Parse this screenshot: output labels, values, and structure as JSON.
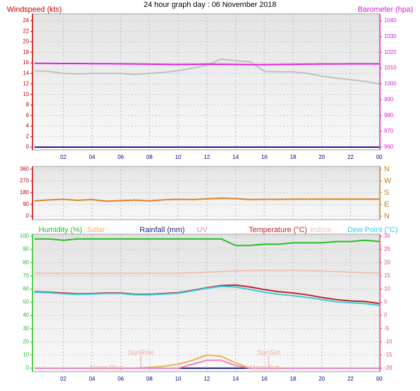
{
  "title": "24 hour graph day : 06 November 2018",
  "chart_data": [
    {
      "type": "line",
      "ylabel": "Windspeed (kts)",
      "y2label": "Barometer (hpa)",
      "ycolor": "#c00000",
      "y2color": "#d020d0",
      "x": [
        0,
        1,
        2,
        3,
        4,
        5,
        6,
        7,
        8,
        9,
        10,
        11,
        12,
        13,
        14,
        15,
        16,
        17,
        18,
        19,
        20,
        21,
        22,
        23,
        24
      ],
      "xlim": [
        0,
        24
      ],
      "xticks": [
        {
          "value": 2,
          "label": "02"
        },
        {
          "value": 4,
          "label": "04"
        },
        {
          "value": 6,
          "label": "06"
        },
        {
          "value": 8,
          "label": "08"
        },
        10,
        12,
        14,
        16,
        18,
        20,
        22,
        {
          "value": 24,
          "label": "00"
        }
      ],
      "ylim": [
        0,
        24
      ],
      "yticks": [
        0,
        2,
        4,
        6,
        8,
        10,
        12,
        14,
        16,
        18,
        20,
        22,
        24
      ],
      "y2lim": [
        960,
        1040
      ],
      "y2ticks": [
        960,
        970,
        980,
        990,
        1000,
        1010,
        1020,
        1030,
        1040
      ],
      "grid": true,
      "series": [
        {
          "color": "#c0c0c0",
          "values": [
            14.5,
            14.4,
            14.0,
            13.9,
            14.0,
            14.0,
            14.0,
            13.8,
            14.0,
            14.2,
            14.5,
            15.0,
            15.6,
            16.7,
            16.4,
            16.2,
            14.4,
            14.3,
            14.3,
            14.0,
            13.5,
            13.1,
            12.8,
            12.5,
            12.0
          ]
        },
        {
          "color": "#e020e0",
          "axis": "y2",
          "values": [
            1013.0,
            1013.0,
            1012.9,
            1012.9,
            1012.8,
            1012.8,
            1012.7,
            1012.6,
            1012.5,
            1012.4,
            1012.3,
            1012.4,
            1012.5,
            1012.4,
            1012.3,
            1012.2,
            1012.2,
            1012.3,
            1012.4,
            1012.5,
            1012.6,
            1012.6,
            1012.7,
            1012.7,
            1012.7
          ]
        },
        {
          "color": "#3010a0",
          "values": [
            0,
            0,
            0,
            0,
            0,
            0,
            0,
            0,
            0,
            0,
            0,
            0,
            0,
            0,
            0,
            0,
            0,
            0,
            0,
            0,
            0,
            0,
            0,
            0,
            0
          ]
        }
      ]
    },
    {
      "type": "line",
      "ycolor": "#c00000",
      "y2color": "#c08020",
      "x": [
        0,
        1,
        2,
        3,
        4,
        5,
        6,
        7,
        8,
        9,
        10,
        11,
        12,
        13,
        14,
        15,
        16,
        17,
        18,
        19,
        20,
        21,
        22,
        23,
        24
      ],
      "xlim": [
        0,
        24
      ],
      "xticks": [
        {
          "value": 2,
          "label": "02"
        },
        {
          "value": 4,
          "label": "04"
        },
        {
          "value": 6,
          "label": "06"
        },
        {
          "value": 8,
          "label": "08"
        },
        10,
        12,
        14,
        16,
        18,
        20,
        22,
        {
          "value": 24,
          "label": "00"
        }
      ],
      "ylim": [
        0,
        360
      ],
      "yticks": [
        0,
        90,
        180,
        270,
        360
      ],
      "y2lim": [
        0,
        360
      ],
      "y2ticks": [
        {
          "value": 0,
          "label": "N"
        },
        {
          "value": 90,
          "label": "E"
        },
        {
          "value": 180,
          "label": "S"
        },
        {
          "value": 270,
          "label": "W"
        },
        {
          "value": 360,
          "label": "N"
        }
      ],
      "grid": true,
      "series": [
        {
          "color": "#e08020",
          "values": [
            118,
            125,
            130,
            122,
            128,
            115,
            120,
            124,
            118,
            126,
            130,
            128,
            133,
            138,
            135,
            128,
            130,
            130,
            131,
            131,
            131,
            131,
            131,
            131,
            131
          ]
        }
      ]
    },
    {
      "type": "line",
      "ycolor": "#20c020",
      "y2color": "#e04080",
      "x": [
        0,
        1,
        2,
        3,
        4,
        5,
        6,
        7,
        8,
        9,
        10,
        11,
        12,
        13,
        14,
        15,
        16,
        17,
        18,
        19,
        20,
        21,
        22,
        23,
        24
      ],
      "xlim": [
        0,
        24
      ],
      "xticks": [
        {
          "value": 2,
          "label": "02"
        },
        {
          "value": 4,
          "label": "04"
        },
        {
          "value": 6,
          "label": "06"
        },
        {
          "value": 8,
          "label": "08"
        },
        10,
        12,
        14,
        16,
        18,
        20,
        22,
        {
          "value": 24,
          "label": "00"
        }
      ],
      "ylim": [
        0,
        100
      ],
      "yticks": [
        0,
        10,
        20,
        30,
        40,
        50,
        60,
        70,
        80,
        90,
        100
      ],
      "y2lim": [
        -20,
        30
      ],
      "y2ticks": [
        -20,
        -15,
        -10,
        -5,
        0,
        5,
        10,
        15,
        20,
        25,
        30
      ],
      "grid": true,
      "series": [
        {
          "name": "Humidity (%)",
          "color": "#20c020",
          "values": [
            98,
            98,
            97,
            98,
            98,
            98,
            98,
            98,
            98,
            98,
            98,
            98,
            98,
            98,
            93,
            93,
            94,
            94,
            95,
            95,
            95,
            96,
            96,
            97,
            96
          ]
        },
        {
          "name": "Solar",
          "color": "#f0b050",
          "values": [
            0,
            0,
            0,
            0,
            0,
            0,
            0,
            0,
            0.5,
            1.5,
            3,
            6,
            10,
            9,
            4,
            0,
            0,
            0,
            0,
            0,
            0,
            0,
            0,
            0,
            0
          ]
        },
        {
          "name": "Rainfall (mm)",
          "color": "#202080",
          "values": [
            0,
            0,
            0,
            0,
            0,
            0,
            0,
            0,
            0,
            0,
            0,
            0,
            0,
            0,
            0,
            0,
            0,
            0,
            0,
            0,
            0,
            0,
            0,
            0,
            0
          ]
        },
        {
          "name": "UV",
          "color": "#f080c0",
          "values": [
            0,
            0,
            0,
            0,
            0,
            0,
            0,
            0,
            0,
            0,
            0,
            3,
            6,
            6,
            2,
            0,
            0,
            0,
            0,
            0,
            0,
            0,
            0,
            0,
            0
          ]
        },
        {
          "name": "Temperature (°C)",
          "color": "#c02020",
          "axis": "y2",
          "values": [
            9.0,
            8.8,
            8.5,
            8.2,
            8.3,
            8.5,
            8.5,
            8.0,
            8.0,
            8.3,
            8.6,
            9.5,
            10.5,
            11.3,
            11.5,
            10.8,
            9.8,
            9.0,
            8.5,
            7.8,
            6.8,
            6.0,
            5.5,
            5.3,
            4.5
          ]
        },
        {
          "name": "Indoor",
          "color": "#f0c0b0",
          "axis": "y2",
          "values": [
            16,
            16,
            16,
            16,
            16,
            16,
            16,
            16,
            16,
            16,
            16,
            16.2,
            16.4,
            16.6,
            16.8,
            17,
            17,
            17,
            17,
            17,
            16.8,
            16.6,
            16.4,
            16.2,
            16
          ]
        },
        {
          "name": "Dew Point (°C)",
          "color": "#30d0e0",
          "axis": "y2",
          "values": [
            8.8,
            8.6,
            8.2,
            8.0,
            8.1,
            8.3,
            8.3,
            7.8,
            7.8,
            8.1,
            8.4,
            9.3,
            10.3,
            11.0,
            10.8,
            9.8,
            8.8,
            8.0,
            7.5,
            6.8,
            6.0,
            5.2,
            4.8,
            4.5,
            3.8
          ]
        }
      ],
      "annotations": [
        {
          "text": "SunRise",
          "x": 7.4
        },
        {
          "text": "SunSet",
          "x": 16.3
        },
        {
          "text": "Moon Rise",
          "x": 5
        },
        {
          "text": "Moon Set",
          "x": 16
        }
      ]
    }
  ]
}
